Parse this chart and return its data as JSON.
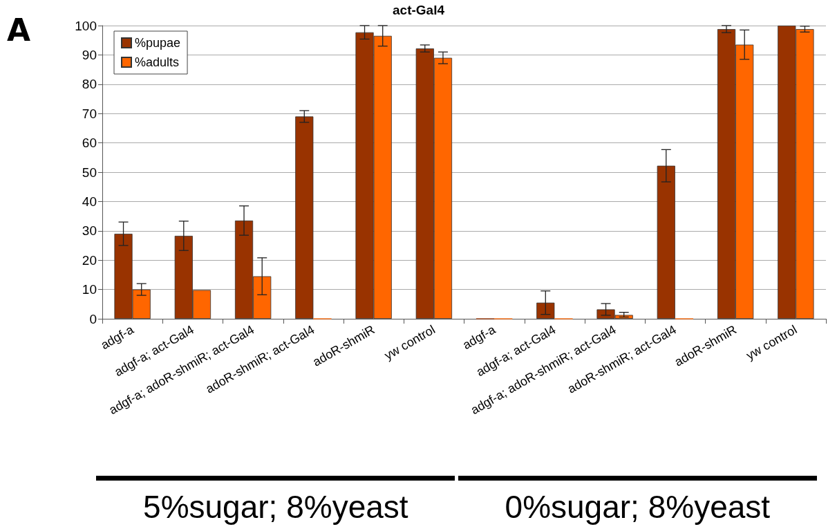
{
  "chart_data": {
    "type": "bar",
    "title": "act-Gal4",
    "categories": [
      "adgf-a",
      "adgf-a; act-Gal4",
      "adgf-a; adoR-shmiR; act-Gal4",
      "adoR-shmiR; act-Gal4",
      "adoR-shmiR",
      "yw control",
      "adgf-a",
      "adgf-a; act-Gal4",
      "adgf-a; adoR-shmiR; act-Gal4",
      "adoR-shmiR; act-Gal4",
      "adoR-shmiR",
      "yw control"
    ],
    "series": [
      {
        "name": "%pupae",
        "color": "#993300",
        "values": [
          29,
          28.3,
          33.5,
          69,
          97.7,
          92.2,
          0,
          5.5,
          3.2,
          52.2,
          98.8,
          100
        ],
        "errors": [
          4,
          5,
          5,
          2,
          2.3,
          1.2,
          null,
          4,
          2,
          5.5,
          1.2,
          null
        ]
      },
      {
        "name": "%adults",
        "color": "#ff6600",
        "values": [
          10,
          9.8,
          14.5,
          0,
          96.5,
          89,
          0,
          0,
          1.3,
          0,
          93.5,
          98.8
        ],
        "errors": [
          2,
          null,
          6.3,
          null,
          3.5,
          2,
          null,
          null,
          [
            0.6,
            2.2
          ],
          null,
          5,
          1
        ]
      }
    ],
    "ylim": [
      0,
      100
    ],
    "yticks": [
      0,
      10,
      20,
      30,
      40,
      50,
      60,
      70,
      80,
      90,
      100
    ],
    "grid": "y",
    "legend": "top left",
    "annotations": [
      "A",
      "5%sugar; 8%yeast",
      "0%sugar; 8%yeast"
    ]
  }
}
